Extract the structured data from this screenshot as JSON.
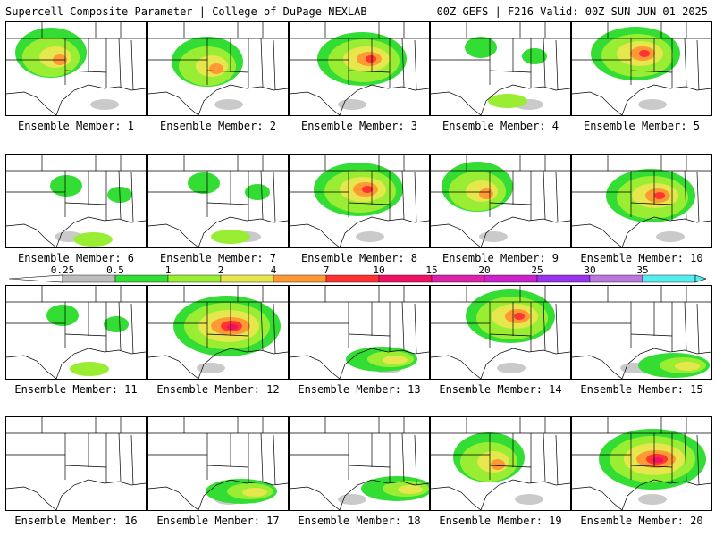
{
  "header": {
    "left": "Supercell Composite Parameter | College of DuPage NEXLAB",
    "right": "00Z GEFS | F216 Valid: 00Z SUN JUN 01 2025"
  },
  "colorbar": {
    "labels": [
      "0.25",
      "0.5",
      "1",
      "2",
      "4",
      "7",
      "10",
      "15",
      "20",
      "25",
      "30",
      "35"
    ],
    "colors": [
      "#bdbdbd",
      "#33dd33",
      "#99ee33",
      "#e6e64d",
      "#ff9933",
      "#ff3333",
      "#ee1166",
      "#dd22aa",
      "#cc22cc",
      "#9933ee",
      "#bb77dd",
      "#55eeee"
    ]
  },
  "members": [
    {
      "caption": "Ensemble Member: 1",
      "intensity": 3
    },
    {
      "caption": "Ensemble Member: 2",
      "intensity": 3
    },
    {
      "caption": "Ensemble Member: 3",
      "intensity": 4
    },
    {
      "caption": "Ensemble Member: 4",
      "intensity": 1
    },
    {
      "caption": "Ensemble Member: 5",
      "intensity": 4
    },
    {
      "caption": "Ensemble Member: 6",
      "intensity": 1
    },
    {
      "caption": "Ensemble Member: 7",
      "intensity": 1
    },
    {
      "caption": "Ensemble Member: 8",
      "intensity": 4
    },
    {
      "caption": "Ensemble Member: 9",
      "intensity": 3
    },
    {
      "caption": "Ensemble Member: 10",
      "intensity": 4
    },
    {
      "caption": "Ensemble Member: 11",
      "intensity": 1
    },
    {
      "caption": "Ensemble Member: 12",
      "intensity": 5
    },
    {
      "caption": "Ensemble Member: 13",
      "intensity": 2
    },
    {
      "caption": "Ensemble Member: 14",
      "intensity": 4
    },
    {
      "caption": "Ensemble Member: 15",
      "intensity": 2
    },
    {
      "caption": "Ensemble Member: 16",
      "intensity": 0
    },
    {
      "caption": "Ensemble Member: 17",
      "intensity": 2
    },
    {
      "caption": "Ensemble Member: 18",
      "intensity": 2
    },
    {
      "caption": "Ensemble Member: 19",
      "intensity": 3
    },
    {
      "caption": "Ensemble Member: 20",
      "intensity": 5
    }
  ]
}
